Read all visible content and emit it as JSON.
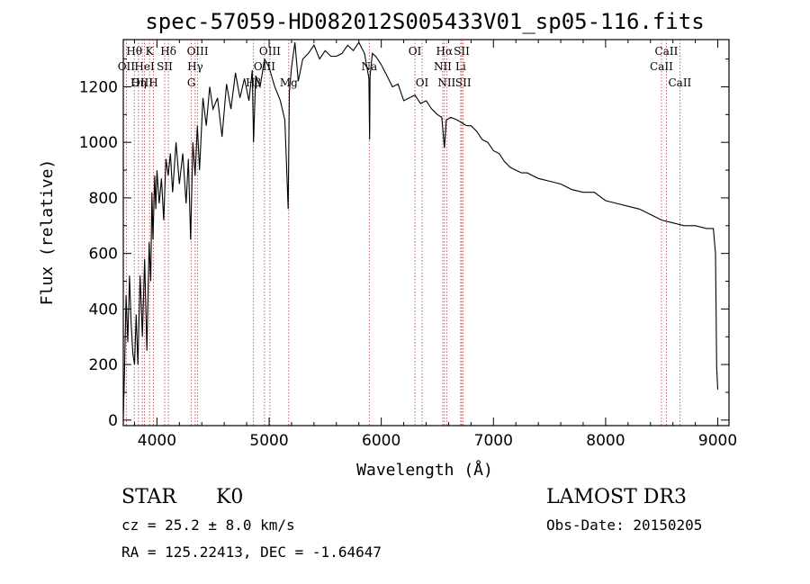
{
  "chart_data": {
    "type": "line",
    "title": "spec-57059-HD082012S005433V01_sp05-116.fits",
    "xlabel": "Wavelength (Å)",
    "ylabel": "Flux (relative)",
    "xlim": [
      3700,
      9100
    ],
    "ylim": [
      -20,
      1370
    ],
    "xticks": [
      4000,
      5000,
      6000,
      7000,
      8000,
      9000
    ],
    "yticks": [
      0,
      200,
      400,
      600,
      800,
      1000,
      1200
    ],
    "x_tick_labels": [
      "4000",
      "5000",
      "6000",
      "7000",
      "8000",
      "9000"
    ],
    "y_tick_labels": [
      "0",
      "200",
      "400",
      "600",
      "800",
      "1000",
      "1200"
    ],
    "series": [
      {
        "name": "spectrum",
        "x": [
          3700,
          3710,
          3725,
          3740,
          3755,
          3770,
          3785,
          3800,
          3815,
          3830,
          3850,
          3870,
          3890,
          3910,
          3930,
          3945,
          3955,
          3965,
          3980,
          3990,
          4000,
          4020,
          4040,
          4060,
          4080,
          4100,
          4120,
          4140,
          4170,
          4200,
          4230,
          4260,
          4280,
          4300,
          4320,
          4340,
          4360,
          4380,
          4410,
          4440,
          4470,
          4500,
          4540,
          4580,
          4620,
          4660,
          4700,
          4740,
          4780,
          4820,
          4850,
          4861,
          4880,
          4920,
          4960,
          5000,
          5050,
          5100,
          5140,
          5170,
          5180,
          5200,
          5230,
          5260,
          5300,
          5350,
          5400,
          5450,
          5500,
          5550,
          5600,
          5650,
          5700,
          5750,
          5800,
          5850,
          5890,
          5896,
          5900,
          5920,
          5950,
          6000,
          6050,
          6100,
          6150,
          6200,
          6250,
          6300,
          6350,
          6400,
          6450,
          6500,
          6540,
          6563,
          6580,
          6620,
          6680,
          6720,
          6760,
          6800,
          6850,
          6900,
          6950,
          7000,
          7050,
          7100,
          7150,
          7200,
          7250,
          7300,
          7400,
          7500,
          7600,
          7700,
          7800,
          7900,
          8000,
          8100,
          8200,
          8300,
          8400,
          8500,
          8600,
          8700,
          8800,
          8900,
          8960,
          8980,
          8990,
          9000
        ],
        "y": [
          5,
          150,
          450,
          280,
          520,
          350,
          240,
          200,
          380,
          200,
          520,
          300,
          580,
          250,
          640,
          500,
          820,
          650,
          880,
          760,
          900,
          780,
          870,
          720,
          940,
          880,
          960,
          820,
          1000,
          850,
          960,
          780,
          940,
          650,
          1000,
          880,
          1060,
          900,
          1160,
          1060,
          1200,
          1120,
          1160,
          1020,
          1210,
          1120,
          1250,
          1160,
          1230,
          1150,
          1260,
          1000,
          1240,
          1200,
          1300,
          1270,
          1200,
          1150,
          1080,
          760,
          1180,
          1270,
          1360,
          1220,
          1300,
          1320,
          1350,
          1300,
          1330,
          1310,
          1310,
          1320,
          1350,
          1330,
          1360,
          1320,
          1230,
          1010,
          1240,
          1320,
          1310,
          1280,
          1240,
          1200,
          1210,
          1150,
          1160,
          1170,
          1140,
          1150,
          1120,
          1100,
          1090,
          980,
          1080,
          1090,
          1080,
          1070,
          1060,
          1060,
          1040,
          1010,
          1000,
          970,
          960,
          930,
          910,
          900,
          890,
          890,
          870,
          860,
          850,
          830,
          820,
          820,
          790,
          780,
          770,
          760,
          740,
          720,
          710,
          700,
          700,
          690,
          690,
          600,
          190,
          110
        ]
      }
    ],
    "lines": [
      {
        "label": "Hθ",
        "x": 3798,
        "row": 1
      },
      {
        "label": "OII",
        "x": 3727,
        "row": 2
      },
      {
        "label": "OIII",
        "x": 3869,
        "row": 3
      },
      {
        "label": "K",
        "x": 3934,
        "row": 1
      },
      {
        "label": "HeI",
        "x": 3889,
        "row": 2
      },
      {
        "label": "Hη",
        "x": 3835,
        "row": 3
      },
      {
        "label": "SII",
        "x": 4069,
        "row": 2
      },
      {
        "label": "H",
        "x": 3969,
        "row": 3
      },
      {
        "label": "Hδ",
        "x": 4102,
        "row": 1
      },
      {
        "label": "OIII",
        "x": 4363,
        "row": 1
      },
      {
        "label": "Hγ",
        "x": 4341,
        "row": 2
      },
      {
        "label": "G",
        "x": 4307,
        "row": 3
      },
      {
        "label": "OIII",
        "x": 5007,
        "row": 1
      },
      {
        "label": "OIII",
        "x": 4959,
        "row": 2
      },
      {
        "label": "Hβ",
        "x": 4861,
        "row": 3
      },
      {
        "label": "Mg",
        "x": 5175,
        "row": 3
      },
      {
        "label": "Na",
        "x": 5893,
        "row": 2
      },
      {
        "label": "OI",
        "x": 6300,
        "row": 1
      },
      {
        "label": "OI",
        "x": 6364,
        "row": 3
      },
      {
        "label": "Hα",
        "x": 6563,
        "row": 1
      },
      {
        "label": "NII",
        "x": 6548,
        "row": 2
      },
      {
        "label": "NII",
        "x": 6583,
        "row": 3
      },
      {
        "label": "SII",
        "x": 6717,
        "row": 1
      },
      {
        "label": "Li",
        "x": 6708,
        "row": 2
      },
      {
        "label": "SII",
        "x": 6731,
        "row": 3
      },
      {
        "label": "CaII",
        "x": 8542,
        "row": 1
      },
      {
        "label": "CaII",
        "x": 8498,
        "row": 2
      },
      {
        "label": "CaII",
        "x": 8662,
        "row": 3
      }
    ],
    "line_color": "#b03a3a",
    "spectrum_color": "#000000"
  },
  "info": {
    "class_label": "STAR",
    "subclass": "K0",
    "survey": "LAMOST DR3",
    "cz": "cz = 25.2 ± 8.0 km/s",
    "obs_date": "Obs-Date: 20150205",
    "coords": "RA = 125.22413, DEC =  -1.64647"
  }
}
